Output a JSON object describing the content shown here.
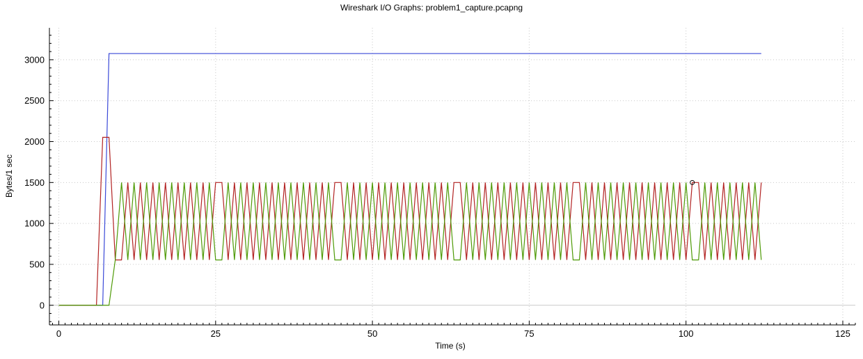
{
  "window": {
    "title": "Wireshark I/O Graphs: problem1_capture.pcapng"
  },
  "chart_data": {
    "type": "line",
    "xlabel": "Time (s)",
    "ylabel": "Bytes/1 sec",
    "xlim": [
      -1.5,
      127
    ],
    "ylim": [
      -240,
      3390
    ],
    "x_ticks": [
      0,
      25,
      50,
      75,
      100,
      125
    ],
    "y_ticks": [
      0,
      500,
      1000,
      1500,
      2000,
      2500,
      3000
    ],
    "grid": true,
    "legend": "none",
    "series": [
      {
        "color": "#3a49d8",
        "points": [
          [
            0,
            0
          ],
          [
            7,
            0
          ],
          [
            8,
            3076
          ],
          [
            112,
            3076
          ]
        ]
      },
      {
        "color": "#b22222",
        "points": [
          [
            0,
            0
          ],
          [
            6,
            0
          ],
          [
            7,
            2052
          ],
          [
            8,
            2052
          ],
          [
            9,
            554
          ]
        ],
        "oscillation": {
          "start": 9,
          "end": 112,
          "low": 554,
          "high": 1500,
          "flats": [
            [
              25,
              26
            ],
            [
              44,
              45
            ],
            [
              63,
              64
            ],
            [
              82,
              83
            ],
            [
              101,
              102
            ]
          ]
        }
      },
      {
        "color": "#4e9a06",
        "points": [
          [
            0,
            0
          ],
          [
            8,
            0
          ],
          [
            9,
            554
          ]
        ],
        "oscillation": {
          "start": 9,
          "end": 112,
          "low": 554,
          "high": 1500,
          "flats": [
            [
              25,
              26
            ],
            [
              44,
              45
            ],
            [
              63,
              64
            ],
            [
              82,
              83
            ],
            [
              101,
              102
            ]
          ],
          "inverse": true
        }
      }
    ],
    "annotations": [
      {
        "type": "marker",
        "x": 101,
        "y": 1500
      }
    ]
  }
}
